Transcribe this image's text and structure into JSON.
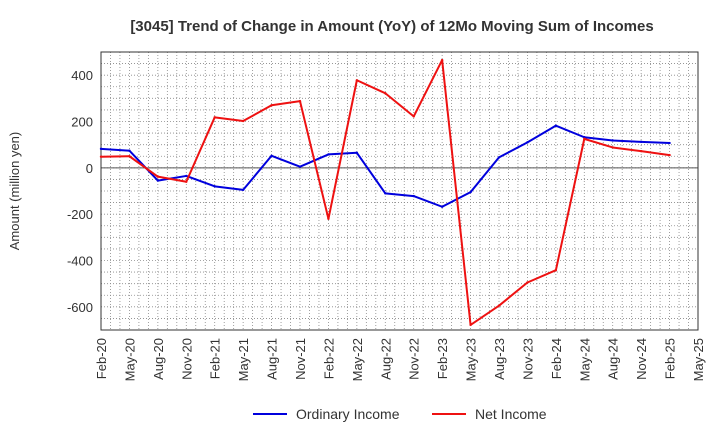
{
  "chart_data": {
    "type": "line",
    "title": "[3045]  Trend of Change in Amount (YoY) of 12Mo Moving Sum of Incomes",
    "xlabel": "",
    "ylabel": "Amount (million yen)",
    "ylim": [
      -700,
      500
    ],
    "yticks": [
      400,
      200,
      0,
      -200,
      -400,
      -600
    ],
    "grid": true,
    "legend_position": "bottom-center",
    "categories": [
      "Feb-20",
      "May-20",
      "Aug-20",
      "Nov-20",
      "Feb-21",
      "May-21",
      "Aug-21",
      "Nov-21",
      "Feb-22",
      "May-22",
      "Aug-22",
      "Nov-22",
      "Feb-23",
      "May-23",
      "Aug-23",
      "Nov-23",
      "Feb-24",
      "May-24",
      "Aug-24",
      "Nov-24",
      "Feb-25",
      "May-25"
    ],
    "series": [
      {
        "name": "Ordinary Income",
        "color": "#0000dd",
        "values": [
          82,
          74,
          -55,
          -35,
          -80,
          -95,
          52,
          5,
          58,
          65,
          -110,
          -122,
          -168,
          -105,
          45,
          110,
          182,
          132,
          118,
          112,
          107,
          null
        ]
      },
      {
        "name": "Net Income",
        "color": "#ee1111",
        "values": [
          48,
          50,
          -38,
          -60,
          218,
          202,
          270,
          288,
          -220,
          378,
          322,
          222,
          465,
          -678,
          -595,
          -495,
          -442,
          125,
          88,
          72,
          55,
          null
        ]
      }
    ]
  }
}
